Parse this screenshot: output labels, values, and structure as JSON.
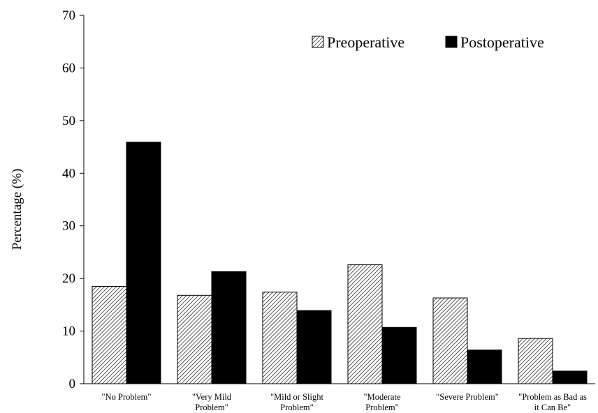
{
  "chart_data": {
    "type": "bar",
    "ylabel": "Percentage (%)",
    "ylim": [
      0,
      70
    ],
    "yticks": [
      0,
      10,
      20,
      30,
      40,
      50,
      60,
      70
    ],
    "grid": false,
    "legend_position": "top-right",
    "categories": [
      [
        "\"No Problem\""
      ],
      [
        "\"Very Mild",
        "Problem\""
      ],
      [
        "\"Mild or Slight",
        "Problem\""
      ],
      [
        "\"Moderate",
        "Problem\""
      ],
      [
        "\"Severe Problem\""
      ],
      [
        "\"Problem as Bad as",
        "it Can Be\""
      ]
    ],
    "series": [
      {
        "name": "Preoperative",
        "pattern": "diagonal-hatch",
        "color": "#ffffff",
        "values": [
          18.5,
          16.8,
          17.4,
          22.6,
          16.3,
          8.6
        ]
      },
      {
        "name": "Postoperative",
        "pattern": "solid",
        "color": "#000000",
        "values": [
          45.9,
          21.3,
          13.9,
          10.7,
          6.4,
          2.4
        ]
      }
    ]
  }
}
